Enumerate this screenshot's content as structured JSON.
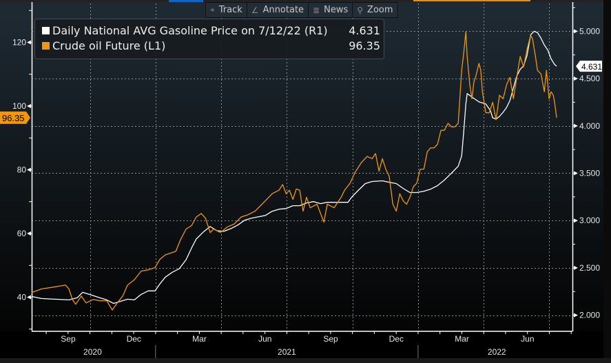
{
  "toolbar": {
    "items": [
      {
        "label": "Track",
        "icon": "crosshair-icon",
        "glyph": "⌖"
      },
      {
        "label": "Annotate",
        "icon": "pencil-icon",
        "glyph": "∠"
      },
      {
        "label": "News",
        "icon": "news-icon",
        "glyph": "≣"
      },
      {
        "label": "Zoom",
        "icon": "magnifier-icon",
        "glyph": "⚲"
      }
    ]
  },
  "legend": [
    {
      "label": "Daily National AVG Gasoline Price on 7/12/22 (R1)",
      "value": "4.631",
      "color": "#ffffff"
    },
    {
      "label": "Crude oil Future (L1)",
      "value": "96.35",
      "color": "#f0960f"
    }
  ],
  "chart_data": {
    "type": "line",
    "title": "",
    "xlabel": "",
    "ylabel_left": "",
    "ylabel_right": "",
    "xlim": [
      2020.528,
      2022.588
    ],
    "left_axis": {
      "ylim": [
        29.3,
        133.3
      ],
      "ticks": [
        40,
        60,
        80,
        100,
        120
      ],
      "tick_labels": [
        "40",
        "60",
        "80",
        "100",
        "120"
      ]
    },
    "right_axis": {
      "ylim": [
        1.83,
        5.33
      ],
      "ticks": [
        2.0,
        2.5,
        3.0,
        3.5,
        4.0,
        4.5,
        5.0
      ],
      "tick_labels": [
        "2.000",
        "2.500",
        "3.000",
        "3.500",
        "4.000",
        "4.500",
        "5.000"
      ]
    },
    "x_month_labels": [
      {
        "x": 2020.667,
        "label": "Sep"
      },
      {
        "x": 2020.917,
        "label": "Dec"
      },
      {
        "x": 2021.167,
        "label": "Mar"
      },
      {
        "x": 2021.417,
        "label": "Jun"
      },
      {
        "x": 2021.667,
        "label": "Sep"
      },
      {
        "x": 2021.917,
        "label": "Dec"
      },
      {
        "x": 2022.167,
        "label": "Mar"
      },
      {
        "x": 2022.417,
        "label": "Jun"
      }
    ],
    "x_year_labels": [
      {
        "x": 2020.76,
        "label": "2020"
      },
      {
        "x": 2021.5,
        "label": "2021"
      },
      {
        "x": 2022.3,
        "label": "2022"
      }
    ],
    "year_dividers": [
      2021.0,
      2022.0
    ],
    "grid": true,
    "legend_position": "top-left",
    "last_value_tags": {
      "left": "96.35",
      "right": "4.631"
    },
    "series": [
      {
        "name": "Daily National AVG Gasoline Price on 7/12/22 (R1)",
        "axis": "right",
        "color": "#ffffff",
        "x": [
          2020.528,
          2020.565,
          2020.617,
          2020.67,
          2020.701,
          2020.722,
          2020.748,
          2020.788,
          2020.814,
          2020.84,
          2020.867,
          2020.893,
          2020.919,
          2020.945,
          2020.972,
          2020.998,
          2021.016,
          2021.037,
          2021.064,
          2021.09,
          2021.116,
          2021.137,
          2021.155,
          2021.182,
          2021.208,
          2021.234,
          2021.26,
          2021.287,
          2021.313,
          2021.339,
          2021.365,
          2021.392,
          2021.418,
          2021.444,
          2021.47,
          2021.497,
          2021.523,
          2021.549,
          2021.575,
          2021.602,
          2021.628,
          2021.654,
          2021.694,
          2021.733,
          2021.746,
          2021.772,
          2021.799,
          2021.825,
          2021.864,
          2021.89,
          2021.917,
          2021.943,
          2021.969,
          2021.995,
          2022.022,
          2022.048,
          2022.074,
          2022.1,
          2022.127,
          2022.153,
          2022.166,
          2022.174,
          2022.182,
          2022.187,
          2022.205,
          2022.232,
          2022.258,
          2022.276,
          2022.284,
          2022.297,
          2022.31,
          2022.324,
          2022.337,
          2022.35,
          2022.363,
          2022.376,
          2022.389,
          2022.402,
          2022.415,
          2022.429,
          2022.442,
          2022.455,
          2022.468,
          2022.481,
          2022.494,
          2022.507,
          2022.52,
          2022.528
        ],
        "y": [
          2.198,
          2.176,
          2.169,
          2.162,
          2.184,
          2.242,
          2.22,
          2.184,
          2.162,
          2.125,
          2.147,
          2.169,
          2.162,
          2.22,
          2.257,
          2.257,
          2.33,
          2.403,
          2.454,
          2.491,
          2.586,
          2.71,
          2.805,
          2.879,
          2.937,
          2.893,
          2.886,
          2.915,
          2.952,
          3.003,
          3.025,
          3.04,
          3.054,
          3.098,
          3.12,
          3.127,
          3.157,
          3.157,
          3.186,
          3.2,
          3.179,
          3.193,
          3.193,
          3.193,
          3.244,
          3.318,
          3.391,
          3.413,
          3.42,
          3.405,
          3.391,
          3.34,
          3.296,
          3.296,
          3.31,
          3.332,
          3.369,
          3.427,
          3.5,
          3.574,
          3.683,
          3.939,
          4.232,
          4.342,
          4.305,
          4.254,
          4.232,
          4.159,
          4.086,
          4.071,
          4.1,
          4.144,
          4.195,
          4.268,
          4.4,
          4.525,
          4.598,
          4.634,
          4.744,
          4.963,
          5.0,
          4.985,
          4.927,
          4.854,
          4.802,
          4.707,
          4.649,
          4.631
        ]
      },
      {
        "name": "Crude oil Future (L1)",
        "axis": "left",
        "color": "#f0960f",
        "x": [
          2020.528,
          2020.565,
          2020.604,
          2020.657,
          2020.67,
          2020.683,
          2020.696,
          2020.717,
          2020.735,
          2020.762,
          2020.788,
          2020.814,
          2020.827,
          2020.835,
          2020.854,
          2020.875,
          2020.893,
          2020.919,
          2020.945,
          2020.972,
          2020.998,
          2021.016,
          2021.037,
          2021.077,
          2021.095,
          2021.116,
          2021.137,
          2021.155,
          2021.174,
          2021.19,
          2021.208,
          2021.221,
          2021.247,
          2021.274,
          2021.3,
          2021.326,
          2021.352,
          2021.379,
          2021.392,
          2021.418,
          2021.444,
          2021.47,
          2021.484,
          2021.497,
          2021.51,
          2021.523,
          2021.536,
          2021.549,
          2021.562,
          2021.575,
          2021.589,
          2021.615,
          2021.641,
          2021.654,
          2021.68,
          2021.707,
          2021.72,
          2021.741,
          2021.759,
          2021.785,
          2021.806,
          2021.825,
          2021.838,
          2021.851,
          2021.864,
          2021.877,
          2021.89,
          2021.904,
          2021.917,
          2021.93,
          2021.943,
          2021.956,
          2021.969,
          2021.982,
          2021.995,
          2022.008,
          2022.022,
          2022.035,
          2022.048,
          2022.061,
          2022.074,
          2022.087,
          2022.1,
          2022.114,
          2022.127,
          2022.14,
          2022.153,
          2022.166,
          2022.174,
          2022.182,
          2022.187,
          2022.197,
          2022.205,
          2022.213,
          2022.219,
          2022.232,
          2022.239,
          2022.245,
          2022.258,
          2022.271,
          2022.284,
          2022.297,
          2022.31,
          2022.324,
          2022.337,
          2022.35,
          2022.363,
          2022.376,
          2022.389,
          2022.402,
          2022.415,
          2022.429,
          2022.436,
          2022.447,
          2022.455,
          2022.468,
          2022.481,
          2022.489,
          2022.499,
          2022.507,
          2022.515,
          2022.52,
          2022.528
        ],
        "y": [
          41.5,
          42.6,
          43.1,
          43.8,
          42.6,
          39.3,
          37.8,
          40.4,
          38.2,
          39.3,
          38.9,
          38.9,
          37.1,
          36.0,
          38.2,
          40.4,
          43.8,
          45.5,
          48.2,
          48.6,
          49.3,
          51.9,
          53.3,
          54.4,
          58.1,
          61.4,
          62.5,
          65.2,
          66.3,
          64.8,
          60.3,
          61.4,
          60.3,
          62.1,
          63.0,
          65.2,
          65.9,
          67.0,
          68.1,
          70.3,
          72.5,
          73.6,
          75.4,
          72.5,
          73.6,
          70.7,
          74.0,
          73.6,
          67.0,
          71.4,
          68.1,
          69.2,
          63.6,
          69.2,
          68.1,
          71.4,
          73.6,
          75.8,
          79.1,
          82.4,
          84.2,
          83.5,
          85.1,
          79.6,
          83.5,
          80.2,
          78.0,
          69.2,
          67.0,
          72.5,
          70.3,
          69.2,
          71.4,
          74.7,
          75.8,
          80.2,
          80.2,
          85.7,
          86.9,
          86.9,
          88.0,
          92.4,
          92.4,
          94.6,
          93.5,
          93.5,
          94.6,
          111.2,
          116.7,
          123.3,
          115.6,
          106.7,
          102.3,
          107.8,
          109.0,
          113.4,
          111.2,
          104.5,
          97.9,
          97.9,
          101.2,
          95.7,
          103.4,
          102.3,
          106.7,
          109.0,
          102.3,
          109.0,
          115.6,
          112.3,
          117.8,
          122.2,
          121.1,
          115.6,
          111.2,
          110.1,
          104.5,
          111.2,
          102.3,
          104.5,
          103.4,
          101.2,
          96.35
        ]
      }
    ]
  }
}
